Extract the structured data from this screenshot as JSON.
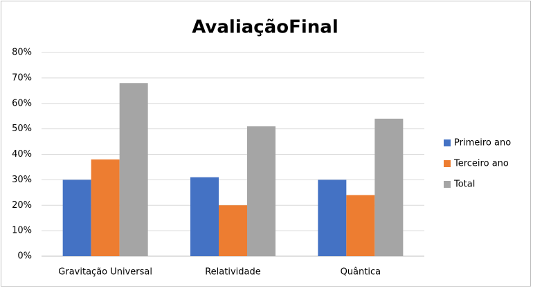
{
  "chart_data": {
    "type": "bar",
    "title": "AvaliaçãoFinal",
    "categories": [
      "Gravitação Universal",
      "Relatividade",
      "Quântica"
    ],
    "series": [
      {
        "name": "Primeiro ano",
        "color": "#4472c4",
        "values": [
          30,
          31,
          30
        ]
      },
      {
        "name": "Terceiro ano",
        "color": "#ed7d31",
        "values": [
          38,
          20,
          24
        ]
      },
      {
        "name": "Total",
        "color": "#a5a5a5",
        "values": [
          68,
          51,
          54
        ]
      }
    ],
    "ylim": [
      0,
      80
    ],
    "yticks": [
      {
        "value": 0,
        "label": "0%"
      },
      {
        "value": 10,
        "label": "10%"
      },
      {
        "value": 20,
        "label": "20%"
      },
      {
        "value": 30,
        "label": "30%"
      },
      {
        "value": 40,
        "label": "40%"
      },
      {
        "value": 50,
        "label": "50%"
      },
      {
        "value": 60,
        "label": "60%"
      },
      {
        "value": 70,
        "label": "70%"
      },
      {
        "value": 80,
        "label": "80%"
      }
    ],
    "grid": true,
    "legend": "right"
  }
}
